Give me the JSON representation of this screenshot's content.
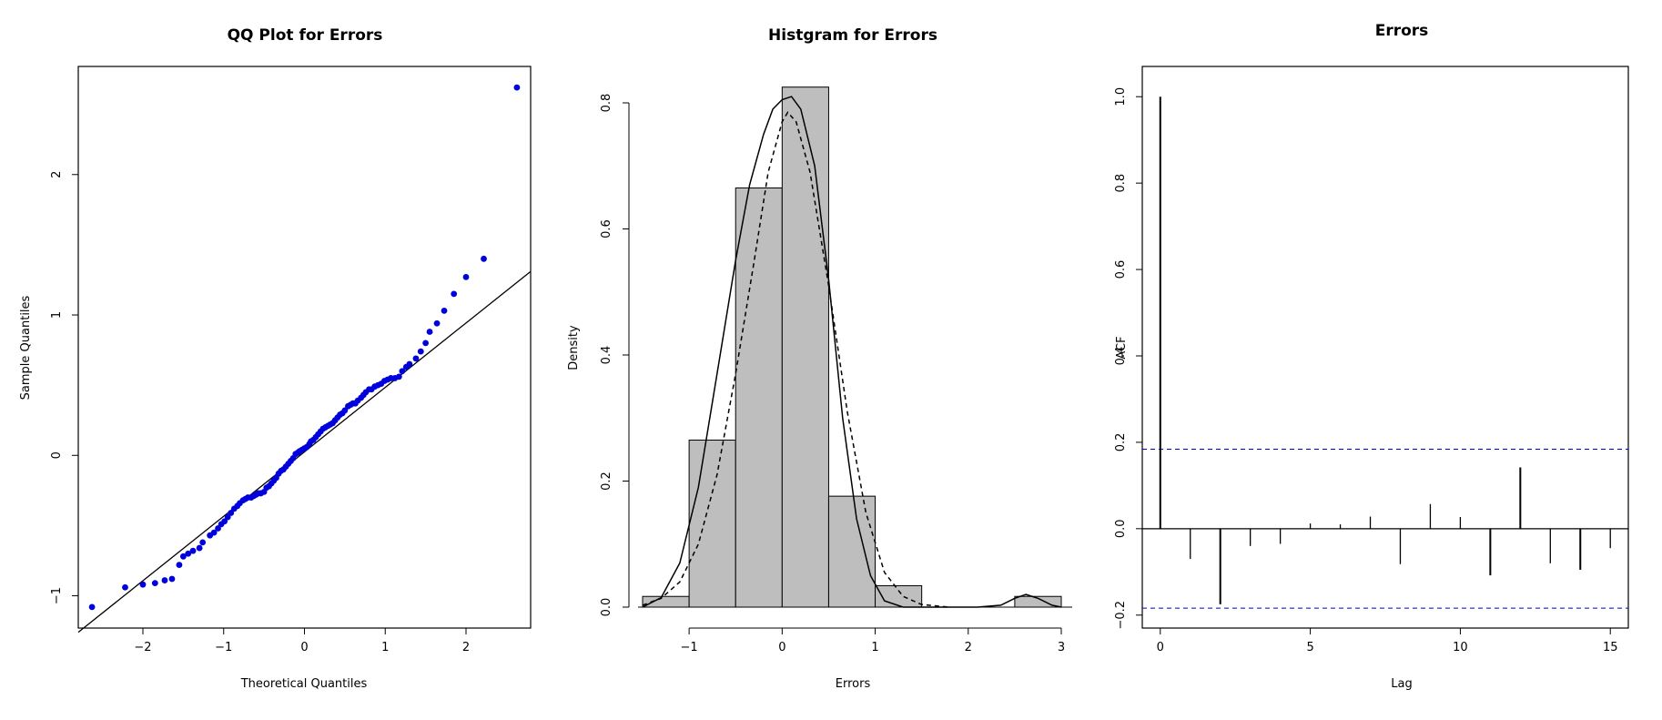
{
  "chart_data": [
    {
      "type": "scatter",
      "title": "QQ Plot for Errors",
      "xlabel": "Theoretical Quantiles",
      "ylabel": "Sample Quantiles",
      "xlim": [
        -2.8,
        2.8
      ],
      "ylim": [
        -1.23,
        2.77
      ],
      "xticks": [
        "−2",
        "−1",
        "0",
        "1",
        "2"
      ],
      "yticks": [
        "−1",
        "0",
        "1",
        "2"
      ],
      "point_color": "#0000dd",
      "reference_line": {
        "x": [
          -2.8,
          2.8
        ],
        "y": [
          -1.26,
          1.31
        ]
      },
      "series": [
        {
          "x": [
            -2.63,
            -2.22,
            -2.0,
            -1.85,
            -1.73,
            -1.64,
            -1.55,
            -1.5,
            -1.44,
            -1.38,
            -1.3,
            -1.26,
            -1.17,
            -1.12,
            -1.07,
            -1.03,
            -0.99,
            -0.95,
            -0.91,
            -0.87,
            -0.83,
            -0.8,
            -0.76,
            -0.73,
            -0.7,
            -0.66,
            -0.63,
            -0.6,
            -0.57,
            -0.54,
            -0.5,
            -0.47,
            -0.44,
            -0.41,
            -0.38,
            -0.35,
            -0.32,
            -0.29,
            -0.26,
            -0.23,
            -0.2,
            -0.17,
            -0.14,
            -0.11,
            -0.08,
            -0.06,
            -0.03,
            0.0,
            0.03,
            0.06,
            0.08,
            0.11,
            0.14,
            0.17,
            0.2,
            0.23,
            0.26,
            0.29,
            0.32,
            0.35,
            0.38,
            0.41,
            0.44,
            0.47,
            0.5,
            0.54,
            0.57,
            0.6,
            0.63,
            0.66,
            0.7,
            0.73,
            0.76,
            0.8,
            0.83,
            0.87,
            0.91,
            0.95,
            0.99,
            1.03,
            1.07,
            1.12,
            1.17,
            1.21,
            1.26,
            1.3,
            1.38,
            1.44,
            1.5,
            1.55,
            1.64,
            1.73,
            1.85,
            2.0,
            2.22,
            2.63
          ],
          "y": [
            -1.08,
            -0.94,
            -0.92,
            -0.91,
            -0.89,
            -0.88,
            -0.78,
            -0.72,
            -0.7,
            -0.68,
            -0.66,
            -0.62,
            -0.57,
            -0.55,
            -0.52,
            -0.49,
            -0.47,
            -0.44,
            -0.41,
            -0.38,
            -0.36,
            -0.34,
            -0.32,
            -0.31,
            -0.3,
            -0.3,
            -0.29,
            -0.28,
            -0.27,
            -0.27,
            -0.26,
            -0.23,
            -0.22,
            -0.2,
            -0.18,
            -0.16,
            -0.13,
            -0.11,
            -0.1,
            -0.08,
            -0.06,
            -0.04,
            -0.02,
            0.01,
            0.02,
            0.03,
            0.04,
            0.05,
            0.06,
            0.08,
            0.1,
            0.11,
            0.13,
            0.15,
            0.17,
            0.19,
            0.2,
            0.21,
            0.22,
            0.23,
            0.25,
            0.27,
            0.29,
            0.3,
            0.32,
            0.35,
            0.36,
            0.37,
            0.37,
            0.39,
            0.41,
            0.43,
            0.45,
            0.47,
            0.47,
            0.49,
            0.5,
            0.51,
            0.53,
            0.54,
            0.55,
            0.55,
            0.56,
            0.6,
            0.63,
            0.65,
            0.69,
            0.74,
            0.8,
            0.88,
            0.94,
            1.03,
            1.15,
            1.27,
            1.4,
            2.62
          ]
        }
      ]
    },
    {
      "type": "bar",
      "title": "Histgram for Errors",
      "xlabel": "Errors",
      "ylabel": "Density",
      "xlim": [
        -1.5,
        3.0
      ],
      "ylim": [
        0,
        0.83
      ],
      "xticks": [
        "−1",
        "0",
        "1",
        "2",
        "3"
      ],
      "yticks": [
        "0.0",
        "0.2",
        "0.4",
        "0.6",
        "0.8"
      ],
      "bar_color": "#bebebe",
      "bins": [
        {
          "x0": -1.5,
          "x1": -1.0,
          "value": 0.017
        },
        {
          "x0": -1.0,
          "x1": -0.5,
          "value": 0.265
        },
        {
          "x0": -0.5,
          "x1": 0.0,
          "value": 0.665
        },
        {
          "x0": 0.0,
          "x1": 0.5,
          "value": 0.825
        },
        {
          "x0": 0.5,
          "x1": 1.0,
          "value": 0.176
        },
        {
          "x0": 1.0,
          "x1": 1.5,
          "value": 0.034
        },
        {
          "x0": 1.5,
          "x1": 2.0,
          "value": 0.0
        },
        {
          "x0": 2.0,
          "x1": 2.5,
          "value": 0.0
        },
        {
          "x0": 2.5,
          "x1": 3.0,
          "value": 0.017
        }
      ],
      "curves": [
        {
          "style": "solid",
          "x": [
            -1.5,
            -1.3,
            -1.1,
            -0.9,
            -0.7,
            -0.5,
            -0.35,
            -0.2,
            -0.1,
            0.0,
            0.1,
            0.2,
            0.35,
            0.5,
            0.65,
            0.8,
            0.95,
            1.1,
            1.3,
            1.5,
            1.8,
            2.1,
            2.35,
            2.5,
            2.62,
            2.75,
            2.9,
            3.0
          ],
          "y": [
            0.0,
            0.015,
            0.07,
            0.19,
            0.37,
            0.55,
            0.67,
            0.75,
            0.79,
            0.805,
            0.81,
            0.79,
            0.7,
            0.52,
            0.3,
            0.14,
            0.05,
            0.01,
            0.0,
            0.0,
            0.0,
            0.0,
            0.003,
            0.014,
            0.02,
            0.014,
            0.003,
            0.0
          ]
        },
        {
          "style": "dashed",
          "x": [
            -1.5,
            -1.3,
            -1.1,
            -0.9,
            -0.7,
            -0.5,
            -0.3,
            -0.15,
            0.0,
            0.06,
            0.15,
            0.3,
            0.5,
            0.7,
            0.9,
            1.1,
            1.3,
            1.5,
            1.8
          ],
          "y": [
            0.003,
            0.014,
            0.04,
            0.1,
            0.21,
            0.37,
            0.55,
            0.69,
            0.77,
            0.785,
            0.77,
            0.69,
            0.51,
            0.31,
            0.15,
            0.055,
            0.017,
            0.004,
            0.0
          ]
        }
      ]
    },
    {
      "type": "bar",
      "title": "Errors",
      "xlabel": "Lag",
      "ylabel": "ACF",
      "xlim": [
        -0.6,
        15.6
      ],
      "ylim": [
        -0.23,
        1.07
      ],
      "xticks": [
        "0",
        "5",
        "10",
        "15"
      ],
      "yticks": [
        "−0.2",
        "0.0",
        "0.2",
        "0.4",
        "0.6",
        "0.8",
        "1.0"
      ],
      "confidence_band": 0.184,
      "band_color": "#0000cc",
      "lags": [
        0,
        1,
        2,
        3,
        4,
        5,
        6,
        7,
        8,
        9,
        10,
        11,
        12,
        13,
        14,
        15
      ],
      "values": [
        1.0,
        -0.07,
        -0.175,
        -0.04,
        -0.035,
        0.012,
        0.01,
        0.028,
        -0.082,
        0.057,
        0.027,
        -0.108,
        0.142,
        -0.08,
        -0.095,
        -0.045
      ]
    }
  ]
}
